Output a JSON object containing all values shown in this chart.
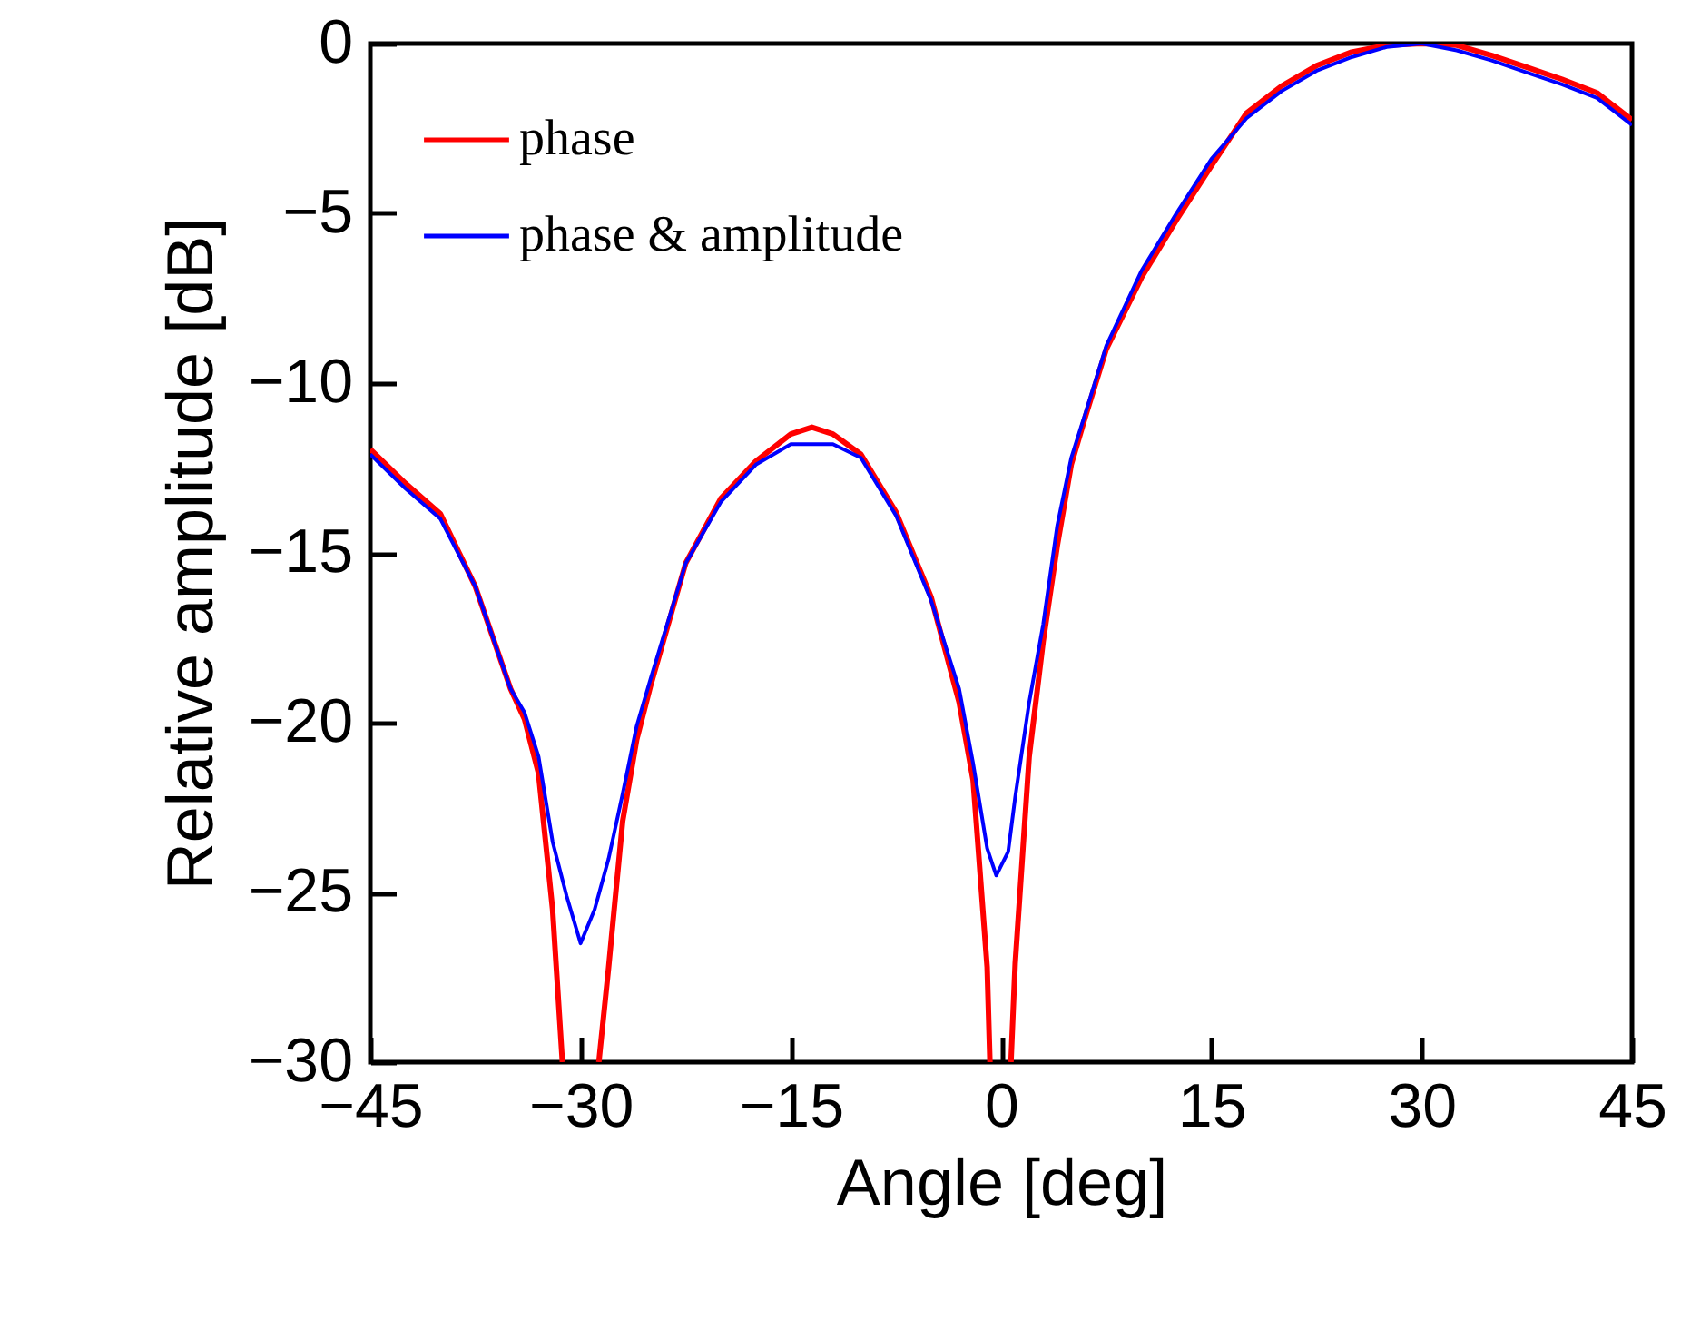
{
  "chart_data": {
    "type": "line",
    "xlabel": "Angle [deg]",
    "ylabel": "Relative amplitude [dB]",
    "xlim": [
      -45,
      45
    ],
    "xticks": [
      -45,
      -30,
      -15,
      0,
      15,
      30,
      45
    ],
    "ylim": [
      -30,
      0
    ],
    "yticks": [
      -30,
      -25,
      -20,
      -15,
      -10,
      -5,
      0
    ],
    "grid": false,
    "legend": "top left",
    "line_style": "solid",
    "marker": "none",
    "series": [
      {
        "name": "phase",
        "color": "#ff0000",
        "x": [
          -45,
          -42.5,
          -40,
          -37.5,
          -35,
          -34,
          -33,
          -32,
          -31.3,
          -30,
          -28.7,
          -28,
          -27,
          -26,
          -25,
          -22.5,
          -20,
          -17.5,
          -15,
          -13.5,
          -12,
          -10,
          -7.5,
          -5,
          -3,
          -2,
          -1,
          -0.8,
          0,
          0.7,
          1,
          2,
          3,
          4,
          5,
          6,
          7.5,
          10,
          12.5,
          15,
          17.5,
          20,
          22.5,
          25,
          27.5,
          30,
          32.5,
          35,
          37.5,
          40,
          42.5,
          45
        ],
        "values": [
          -11.95,
          -12.95,
          -13.85,
          -16.0,
          -19.0,
          -19.9,
          -21.5,
          -25.5,
          -30,
          null,
          -30,
          -27.2,
          -22.9,
          -20.5,
          -18.9,
          -15.3,
          -13.4,
          -12.3,
          -11.5,
          -11.3,
          -11.5,
          -12.1,
          -13.8,
          -16.3,
          -19.4,
          -21.7,
          -27.2,
          -30,
          null,
          -30,
          -27.1,
          -21.0,
          -17.6,
          -14.8,
          -12.4,
          -11.0,
          -9.0,
          -6.9,
          -5.2,
          -3.6,
          -2.05,
          -1.25,
          -0.65,
          -0.25,
          -0.05,
          0,
          -0.05,
          -0.35,
          -0.7,
          -1.05,
          -1.45,
          -2.25
        ]
      },
      {
        "name": "phase & amplitude",
        "color": "#0000ff",
        "x": [
          -45,
          -42.5,
          -40,
          -37.5,
          -35,
          -34,
          -33,
          -32,
          -31,
          -30,
          -29,
          -28,
          -27,
          -26,
          -25,
          -22.5,
          -20,
          -17.5,
          -15,
          -12,
          -10,
          -7.5,
          -5,
          -3,
          -2,
          -1,
          -0.35,
          0.5,
          1,
          2,
          3,
          4,
          5,
          6,
          7.5,
          10,
          12.5,
          15,
          17.5,
          20,
          22.5,
          25,
          27.5,
          30,
          32.5,
          35,
          37.5,
          40,
          42.5,
          45
        ],
        "values": [
          -12.1,
          -13.1,
          -14.0,
          -16.0,
          -19.0,
          -19.7,
          -21.0,
          -23.5,
          -25.1,
          -26.5,
          -25.5,
          -24.0,
          -22.1,
          -20.1,
          -18.7,
          -15.3,
          -13.5,
          -12.4,
          -11.8,
          -11.8,
          -12.2,
          -13.9,
          -16.4,
          -19.0,
          -21.2,
          -23.7,
          -24.5,
          -23.8,
          -22.2,
          -19.4,
          -17.1,
          -14.2,
          -12.2,
          -10.9,
          -8.9,
          -6.7,
          -5.0,
          -3.4,
          -2.2,
          -1.4,
          -0.8,
          -0.4,
          -0.1,
          0,
          -0.2,
          -0.5,
          -0.85,
          -1.2,
          -1.6,
          -2.4
        ]
      }
    ]
  }
}
